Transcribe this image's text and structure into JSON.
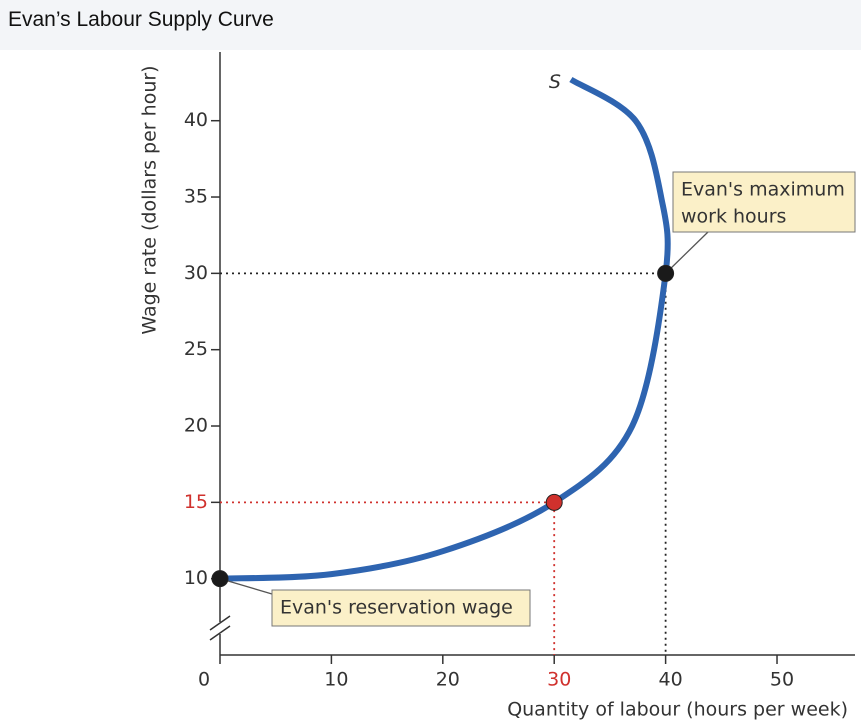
{
  "chart_data": {
    "type": "line",
    "title": "Evan’s Labour Supply Curve",
    "x_label": "Quantity of labour (hours per week)",
    "y_label": "Wage rate (dollars per hour)",
    "xlim": [
      0,
      57
    ],
    "ylim": [
      5,
      44.5
    ],
    "xticks": [
      0,
      10,
      20,
      30,
      40,
      50
    ],
    "yticks": [
      10,
      15,
      20,
      25,
      30,
      35,
      40
    ],
    "series": [
      {
        "name": "S",
        "color": "#2e64b0",
        "x": [
          0,
          10,
          20,
          30,
          37,
          40,
          39.6,
          37.3,
          31.5
        ],
        "y": [
          10,
          10.3,
          11.8,
          15,
          20,
          30,
          35,
          40,
          42.7
        ]
      }
    ],
    "points": [
      {
        "x": 0,
        "y": 10,
        "color": "#1a1a1a",
        "label": [
          "Evan's reservation wage"
        ]
      },
      {
        "x": 40,
        "y": 30,
        "color": "#1a1a1a",
        "label": [
          "Evan's maximum",
          "work hours"
        ]
      },
      {
        "x": 30,
        "y": 15,
        "color": "#d0312d"
      }
    ],
    "highlight_color": "#d0312d"
  }
}
